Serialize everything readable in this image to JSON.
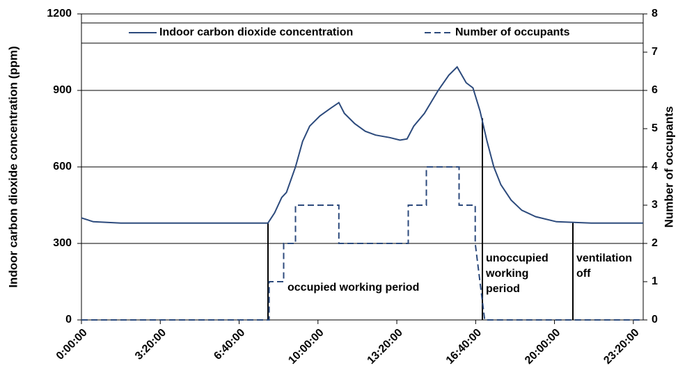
{
  "chart_data": {
    "type": "line",
    "ylabel": "Indoor carbon dioxide concentration (ppm)",
    "y2label": "Number of occupants",
    "xlim": [
      0,
      1425
    ],
    "xticks": [
      {
        "value": 0,
        "label": "0:00:00"
      },
      {
        "value": 200,
        "label": "3:20:00"
      },
      {
        "value": 400,
        "label": "6:40:00"
      },
      {
        "value": 600,
        "label": "10:00:00"
      },
      {
        "value": 800,
        "label": "13:20:00"
      },
      {
        "value": 1000,
        "label": "16:40:00"
      },
      {
        "value": 1200,
        "label": "20:00:00"
      },
      {
        "value": 1400,
        "label": "23:20:00"
      }
    ],
    "ylim": [
      0,
      1200
    ],
    "yticks": [
      0,
      300,
      600,
      900,
      1200
    ],
    "y2lim": [
      0,
      8
    ],
    "y2ticks": [
      0,
      1,
      2,
      3,
      4,
      5,
      6,
      7,
      8
    ],
    "grid": true,
    "legend": "top",
    "series": [
      {
        "name": "Indoor carbon dioxide concentration",
        "color": "#2c4a7c",
        "line_style": "solid",
        "x": [
          0,
          30,
          100,
          300,
          473,
          490,
          508,
          520,
          543,
          561,
          579,
          605,
          632,
          653,
          667,
          693,
          720,
          746,
          782,
          808,
          826,
          843,
          870,
          905,
          932,
          953,
          976,
          993,
          1011,
          1029,
          1046,
          1064,
          1090,
          1117,
          1152,
          1205,
          1293,
          1425
        ],
        "values": [
          400,
          385,
          380,
          380,
          380,
          420,
          480,
          500,
          600,
          700,
          760,
          800,
          830,
          852,
          810,
          770,
          740,
          725,
          715,
          705,
          710,
          760,
          810,
          900,
          960,
          992,
          930,
          910,
          820,
          700,
          600,
          530,
          470,
          430,
          405,
          385,
          380,
          380
        ]
      },
      {
        "name": "Number of occupants",
        "color": "#2c4a7c",
        "line_style": "dashed",
        "axis": "y2",
        "x": [
          0,
          476,
          476,
          513,
          513,
          543,
          543,
          653,
          653,
          829,
          829,
          875,
          875,
          958,
          958,
          999,
          999,
          1023,
          1425
        ],
        "values": [
          0,
          0,
          1,
          1,
          2,
          2,
          3,
          3,
          2,
          2,
          3,
          3,
          4,
          4,
          3,
          3,
          2,
          0,
          0
        ]
      }
    ],
    "annotations": [
      "occupied working period",
      "unoccupied",
      "working",
      "period",
      "ventilation",
      "off"
    ]
  }
}
